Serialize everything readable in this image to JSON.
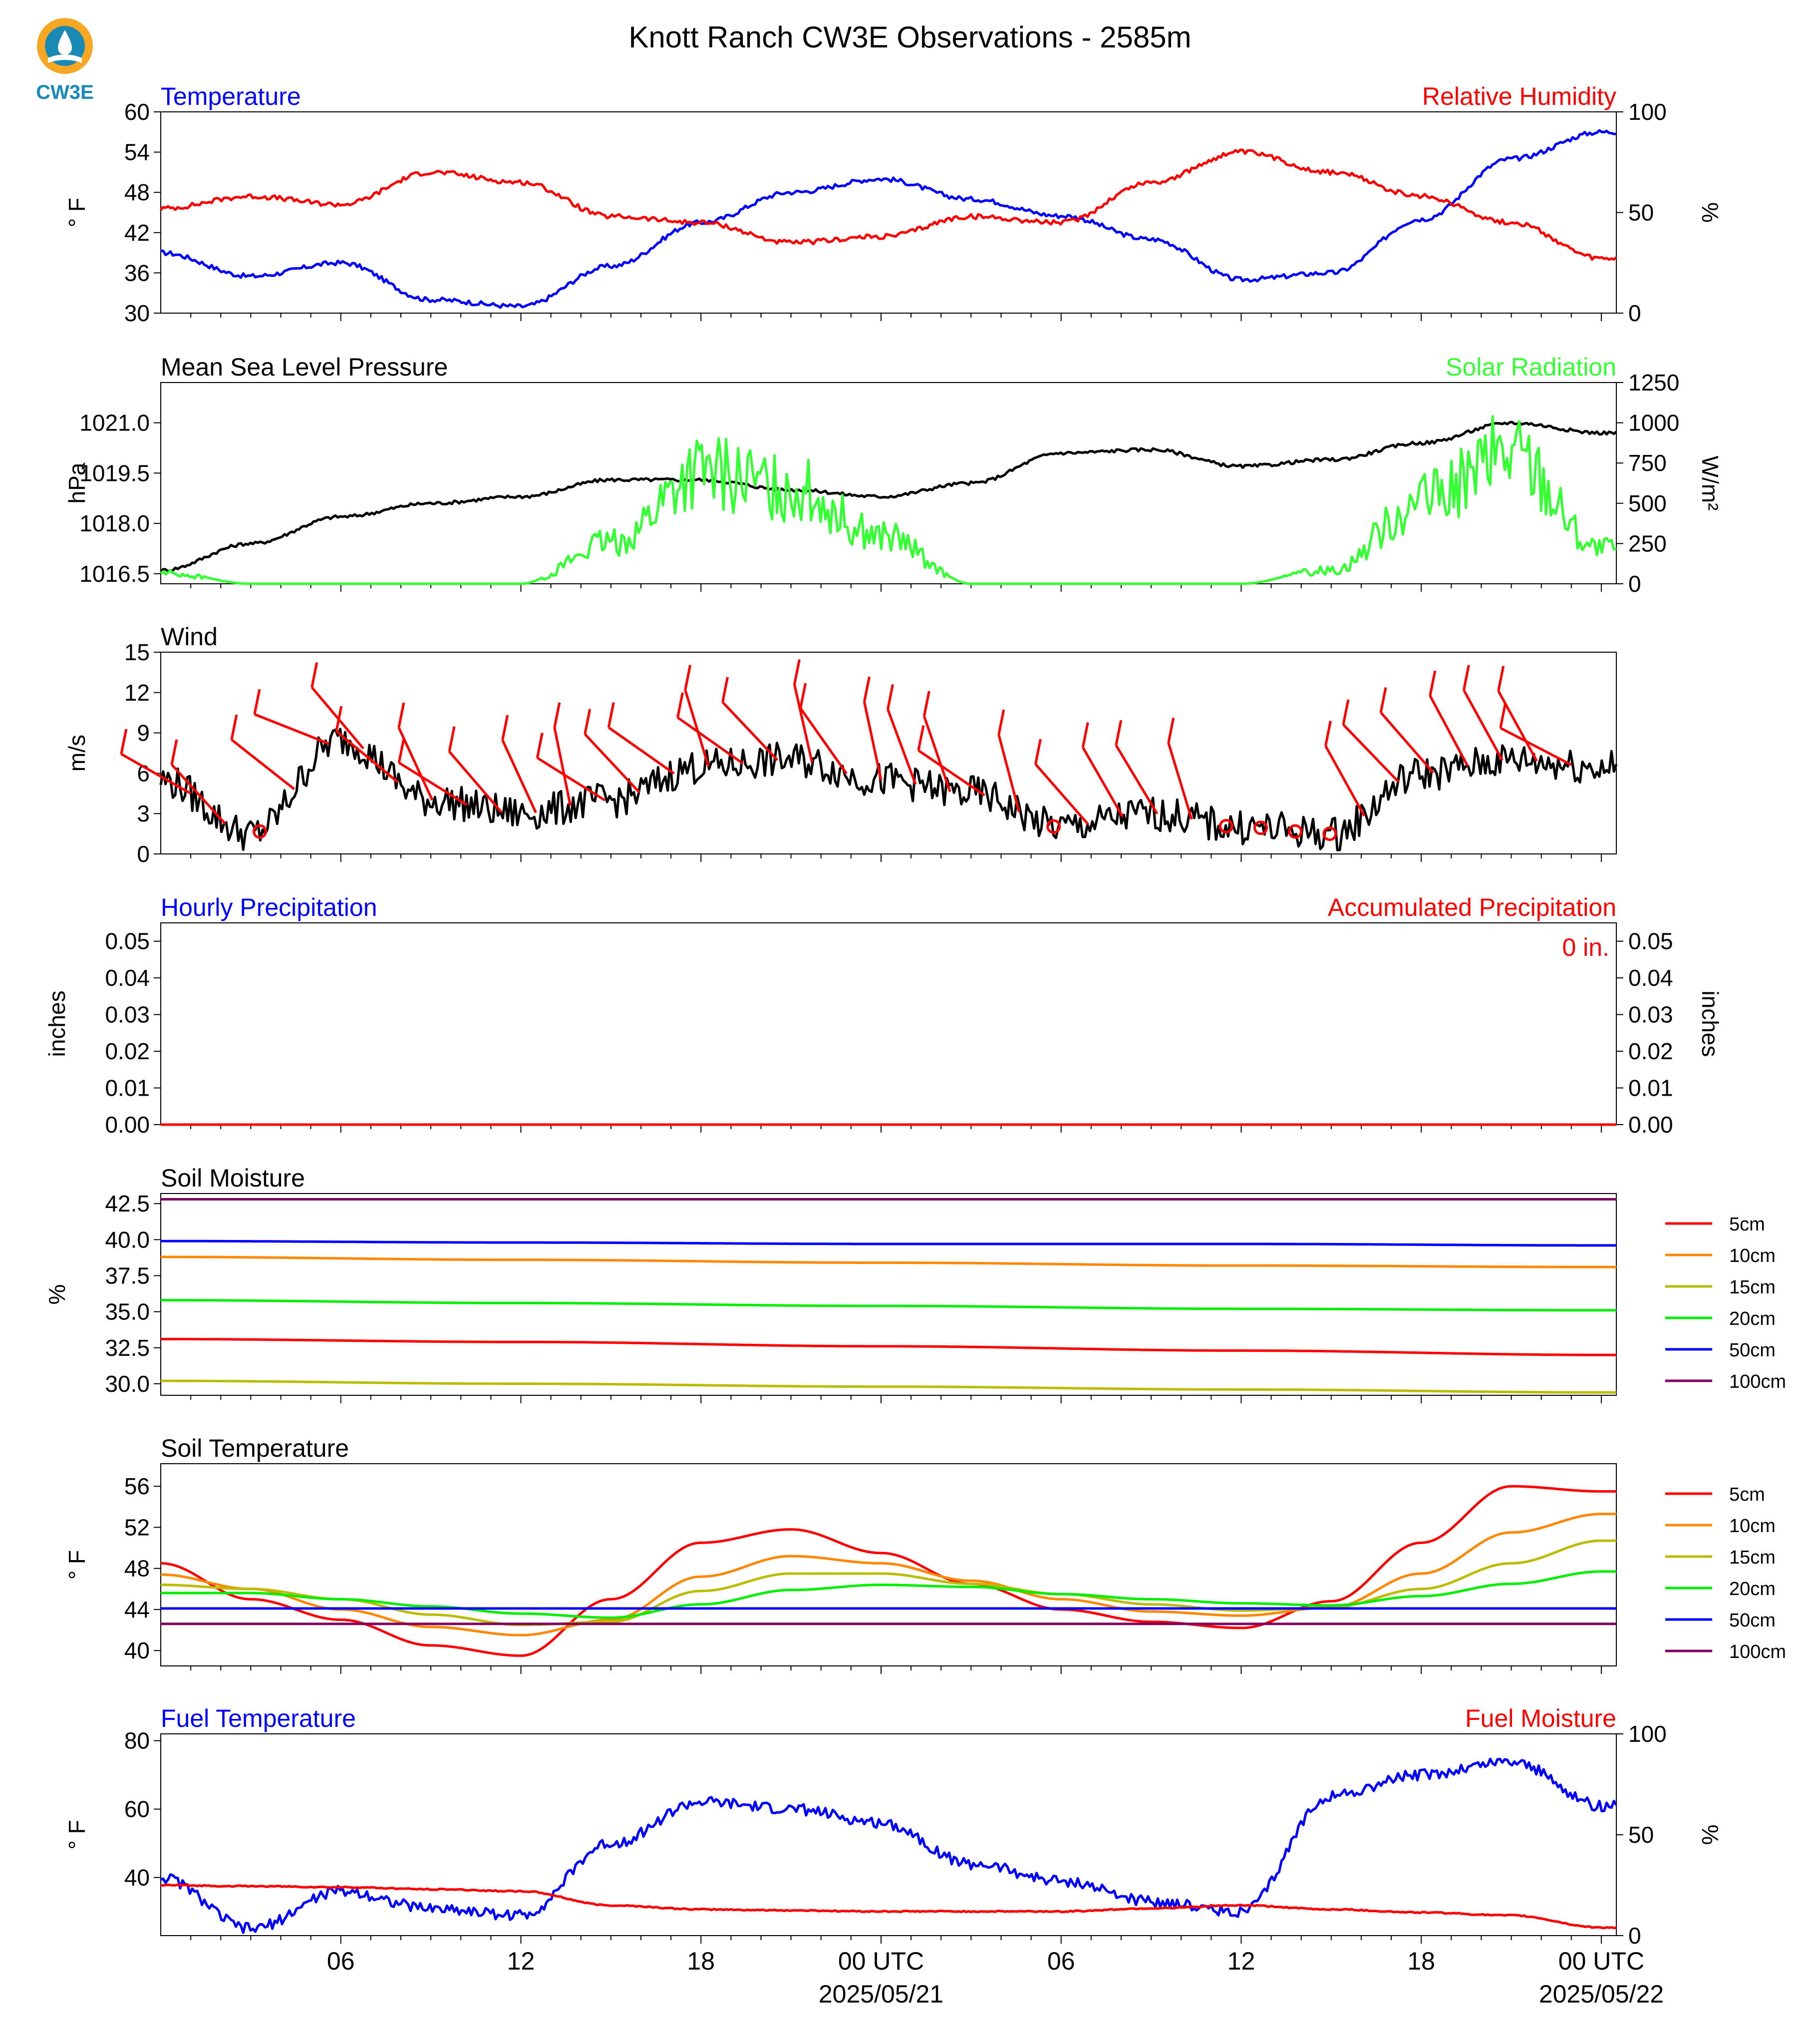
{
  "page_title": "Knott Ranch CW3E Observations - 2585m",
  "logo": {
    "text": "CW3E",
    "color": "#1a8ab5",
    "accent": "#f5a623"
  },
  "x_axis": {
    "ticks": [
      "06",
      "12",
      "18",
      "00 UTC",
      "06",
      "12",
      "18",
      "00 UTC"
    ],
    "dates": [
      "2025/05/21",
      "2025/05/22"
    ]
  },
  "chart_data": [
    {
      "type": "line",
      "left_title": "Temperature",
      "right_title": "Relative Humidity",
      "ylabel": "° F",
      "y2label": "%",
      "ylim": [
        30,
        60
      ],
      "yticks": [
        30,
        36,
        42,
        48,
        54,
        60
      ],
      "y2lim": [
        0,
        100
      ],
      "y2ticks": [
        0,
        50,
        100
      ],
      "x": [
        0,
        3,
        6,
        9,
        12,
        15,
        18,
        21,
        24,
        27,
        30,
        33,
        36,
        39,
        42,
        45,
        48
      ],
      "series": [
        {
          "name": "Temperature",
          "axis": "left",
          "color": "#0000ff",
          "values": [
            39,
            35.5,
            37.5,
            32,
            31,
            37,
            43.5,
            48,
            50,
            47,
            44.5,
            41,
            35,
            36,
            44,
            53,
            57
          ]
        },
        {
          "name": "Relative Humidity",
          "axis": "right",
          "color": "#ff0000",
          "values": [
            52,
            58,
            54,
            70,
            65,
            48,
            45,
            35,
            38,
            48,
            45,
            65,
            80,
            70,
            58,
            45,
            27
          ]
        }
      ]
    },
    {
      "type": "line",
      "left_title": "Mean Sea Level Pressure",
      "right_title": "Solar Radiation",
      "ylabel": "hPa",
      "y2label": "W/m²",
      "ylim": [
        1016.2,
        1022.2
      ],
      "yticks": [
        1016.5,
        1018.0,
        1019.5,
        1021.0
      ],
      "ytick_labels": [
        "1016.5",
        "1018.0",
        "1019.5",
        "1021.0"
      ],
      "y2lim": [
        0,
        1250
      ],
      "y2ticks": [
        0,
        250,
        500,
        750,
        1000,
        1250
      ],
      "x": [
        0,
        3,
        6,
        9,
        12,
        15,
        18,
        21,
        24,
        27,
        30,
        33,
        36,
        39,
        42,
        45,
        48
      ],
      "series": [
        {
          "name": "Mean Sea Level Pressure",
          "axis": "left",
          "color": "#000000",
          "values": [
            1016.6,
            1017.4,
            1018.2,
            1018.6,
            1018.8,
            1019.3,
            1019.3,
            1019.0,
            1018.8,
            1019.2,
            1020.1,
            1020.2,
            1019.7,
            1019.9,
            1020.4,
            1021.0,
            1020.7
          ]
        },
        {
          "name": "Solar Radiation",
          "axis": "right",
          "color": "#33ff33",
          "values": [
            80,
            0,
            0,
            0,
            0,
            300,
            800,
            700,
            350,
            0,
            0,
            0,
            0,
            100,
            600,
            950,
            250
          ]
        }
      ]
    },
    {
      "type": "line",
      "left_title": "Wind",
      "ylabel": "m/s",
      "ylim": [
        0,
        15
      ],
      "yticks": [
        0,
        3,
        6,
        9,
        12,
        15
      ],
      "x": [
        0,
        3,
        6,
        9,
        12,
        15,
        18,
        21,
        24,
        27,
        30,
        33,
        36,
        39,
        42,
        45,
        48
      ],
      "series": [
        {
          "name": "Wind",
          "axis": "left",
          "color": "#000000",
          "values": [
            5.5,
            1.5,
            8.5,
            4,
            3,
            4,
            6.5,
            7,
            5.5,
            4.5,
            2,
            3,
            2,
            1.5,
            6,
            7,
            6.5
          ]
        }
      ],
      "barb_color": "#ff0000"
    },
    {
      "type": "line",
      "left_title": "Hourly Precipitation",
      "right_title": "Accumulated Precipitation",
      "annotation": "0 in.",
      "ylabel": "inches",
      "y2label": "inches",
      "ylim": [
        0,
        0.055
      ],
      "yticks": [
        0,
        0.01,
        0.02,
        0.03,
        0.04,
        0.05
      ],
      "ytick_labels": [
        "0.00",
        "0.01",
        "0.02",
        "0.03",
        "0.04",
        "0.05"
      ],
      "x": [
        0,
        48
      ],
      "series": [
        {
          "name": "Accumulated Precipitation",
          "axis": "left",
          "color": "#ff0000",
          "values": [
            0,
            0
          ]
        }
      ]
    },
    {
      "type": "line",
      "left_title": "Soil Moisture",
      "ylabel": "%",
      "ylim": [
        29.2,
        43.2
      ],
      "yticks": [
        30,
        32.5,
        35,
        37.5,
        40,
        42.5
      ],
      "ytick_labels": [
        "30.0",
        "32.5",
        "35.0",
        "37.5",
        "40.0",
        "42.5"
      ],
      "x": [
        0,
        12,
        24,
        36,
        48
      ],
      "series": [
        {
          "name": "5cm",
          "color": "#ff0000",
          "values": [
            33.1,
            32.9,
            32.6,
            32.3,
            32.0
          ]
        },
        {
          "name": "10cm",
          "color": "#ff8800",
          "values": [
            38.8,
            38.6,
            38.4,
            38.2,
            38.1
          ]
        },
        {
          "name": "15cm",
          "color": "#bbbb00",
          "values": [
            30.2,
            30.0,
            29.8,
            29.6,
            29.4
          ]
        },
        {
          "name": "20cm",
          "color": "#00ee00",
          "values": [
            35.8,
            35.6,
            35.4,
            35.2,
            35.1
          ]
        },
        {
          "name": "50cm",
          "color": "#0000ff",
          "values": [
            39.9,
            39.8,
            39.7,
            39.7,
            39.6
          ]
        },
        {
          "name": "100cm",
          "color": "#800060",
          "values": [
            42.8,
            42.8,
            42.8,
            42.8,
            42.8
          ]
        }
      ]
    },
    {
      "type": "line",
      "left_title": "Soil Temperature",
      "ylabel": "° F",
      "ylim": [
        38.5,
        58.2
      ],
      "yticks": [
        40,
        44,
        48,
        52,
        56
      ],
      "x": [
        0,
        3,
        6,
        9,
        12,
        15,
        18,
        21,
        24,
        27,
        30,
        33,
        36,
        39,
        42,
        45,
        48
      ],
      "series": [
        {
          "name": "5cm",
          "color": "#ff0000",
          "values": [
            48.5,
            45,
            43,
            40.5,
            39.5,
            45,
            50.5,
            51.8,
            49.5,
            46.5,
            44,
            42.8,
            42.2,
            44.8,
            50.5,
            56,
            55.5
          ]
        },
        {
          "name": "10cm",
          "color": "#ff8800",
          "values": [
            47.4,
            46,
            44,
            42.3,
            41.5,
            43,
            47.2,
            49.2,
            48.5,
            46.8,
            45,
            43.8,
            43.4,
            44.2,
            47.5,
            51.5,
            53.3
          ]
        },
        {
          "name": "15cm",
          "color": "#bbbb00",
          "values": [
            46.4,
            46,
            45,
            43.5,
            42.5,
            42.8,
            45.8,
            47.5,
            47.5,
            46.5,
            45.5,
            44.5,
            43.9,
            44.2,
            46,
            48.5,
            50.7
          ]
        },
        {
          "name": "20cm",
          "color": "#00ee00",
          "values": [
            45.6,
            45.6,
            45,
            44.3,
            43.6,
            43.2,
            44.5,
            45.9,
            46.4,
            46.2,
            45.5,
            45,
            44.6,
            44.4,
            45.3,
            46.5,
            47.7
          ]
        },
        {
          "name": "50cm",
          "color": "#0000ff",
          "values": [
            44.1,
            44.1,
            44.1,
            44.1,
            44.1,
            44.1,
            44.1,
            44.1,
            44.1,
            44.1,
            44.1,
            44.1,
            44.1,
            44.1,
            44.1,
            44.1,
            44.1
          ]
        },
        {
          "name": "100cm",
          "color": "#800060",
          "values": [
            42.6,
            42.6,
            42.6,
            42.6,
            42.6,
            42.6,
            42.6,
            42.6,
            42.6,
            42.6,
            42.6,
            42.6,
            42.6,
            42.6,
            42.6,
            42.6,
            42.6
          ]
        }
      ]
    },
    {
      "type": "line",
      "left_title": "Fuel Temperature",
      "right_title": "Fuel Moisture",
      "ylabel": "° F",
      "y2label": "%",
      "ylim": [
        23,
        82
      ],
      "yticks": [
        40,
        60,
        80
      ],
      "y2lim": [
        0,
        100
      ],
      "y2ticks": [
        0,
        50,
        100
      ],
      "x": [
        0,
        3,
        6,
        9,
        12,
        15,
        18,
        21,
        24,
        27,
        30,
        33,
        36,
        39,
        42,
        45,
        48
      ],
      "series": [
        {
          "name": "Fuel Temperature",
          "axis": "left",
          "color": "#0000ff",
          "values": [
            40,
            25,
            36,
            31,
            29,
            50,
            62,
            60,
            56,
            44,
            39,
            33,
            30,
            64,
            70,
            74,
            61
          ]
        },
        {
          "name": "Fuel Moisture",
          "axis": "right",
          "color": "#ff0000",
          "values": [
            25,
            24.5,
            24,
            23,
            22,
            15,
            13,
            12.5,
            12,
            12,
            12,
            13.5,
            15,
            13,
            11.5,
            10,
            4
          ]
        }
      ]
    }
  ]
}
